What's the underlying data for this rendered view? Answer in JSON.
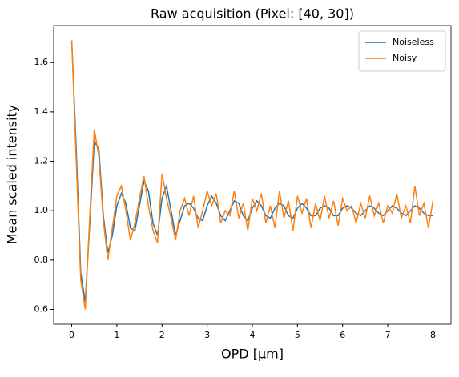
{
  "chart_data": {
    "type": "line",
    "title": "Raw acquisition (Pixel: [40, 30])",
    "xlabel": "OPD [µm]",
    "ylabel": "Mean scaled intensity",
    "x": [
      0,
      0.1,
      0.2,
      0.3,
      0.4,
      0.5,
      0.6,
      0.7,
      0.8,
      0.9,
      1.0,
      1.1,
      1.2,
      1.3,
      1.4,
      1.5,
      1.6,
      1.7,
      1.8,
      1.9,
      2.0,
      2.1,
      2.2,
      2.3,
      2.4,
      2.5,
      2.6,
      2.7,
      2.8,
      2.9,
      3.0,
      3.1,
      3.2,
      3.3,
      3.4,
      3.5,
      3.6,
      3.7,
      3.8,
      3.9,
      4.0,
      4.1,
      4.2,
      4.3,
      4.4,
      4.5,
      4.6,
      4.7,
      4.8,
      4.9,
      5.0,
      5.1,
      5.2,
      5.3,
      5.4,
      5.5,
      5.6,
      5.7,
      5.8,
      5.9,
      6.0,
      6.1,
      6.2,
      6.3,
      6.4,
      6.5,
      6.6,
      6.7,
      6.8,
      6.9,
      7.0,
      7.1,
      7.2,
      7.3,
      7.4,
      7.5,
      7.6,
      7.7,
      7.8,
      7.9,
      8.0
    ],
    "series": [
      {
        "name": "Noiseless",
        "color": "#1f77b4",
        "values": [
          1.69,
          1.25,
          0.75,
          0.63,
          0.95,
          1.28,
          1.25,
          0.98,
          0.83,
          0.9,
          1.02,
          1.07,
          1.03,
          0.93,
          0.92,
          1.02,
          1.12,
          1.08,
          0.95,
          0.9,
          1.05,
          1.1,
          1.0,
          0.9,
          0.96,
          1.02,
          1.03,
          1.01,
          0.97,
          0.96,
          1.02,
          1.06,
          1.03,
          0.98,
          0.96,
          1.0,
          1.04,
          1.03,
          0.98,
          0.96,
          1.01,
          1.04,
          1.02,
          0.98,
          0.97,
          1.01,
          1.03,
          1.02,
          0.98,
          0.97,
          1.01,
          1.03,
          1.01,
          0.98,
          0.98,
          1.01,
          1.02,
          1.01,
          0.98,
          0.98,
          1.01,
          1.02,
          1.01,
          0.99,
          0.98,
          1.0,
          1.02,
          1.01,
          0.99,
          0.98,
          1.0,
          1.02,
          1.01,
          0.99,
          0.98,
          1.0,
          1.02,
          1.01,
          0.99,
          0.98,
          0.98
        ]
      },
      {
        "name": "Noisy",
        "color": "#ff7f0e",
        "values": [
          1.69,
          1.2,
          0.72,
          0.6,
          0.98,
          1.33,
          1.22,
          0.96,
          0.8,
          0.93,
          1.06,
          1.1,
          1.0,
          0.88,
          0.95,
          1.05,
          1.14,
          1.02,
          0.92,
          0.87,
          1.15,
          1.05,
          0.97,
          0.88,
          1.0,
          1.05,
          0.98,
          1.06,
          0.93,
          1.0,
          1.08,
          1.02,
          1.07,
          0.95,
          1.0,
          0.98,
          1.08,
          0.97,
          1.03,
          0.92,
          1.05,
          1.0,
          1.07,
          0.95,
          1.02,
          0.93,
          1.08,
          0.97,
          1.04,
          0.92,
          1.06,
          0.99,
          1.05,
          0.93,
          1.03,
          0.96,
          1.06,
          0.97,
          1.04,
          0.94,
          1.05,
          1.0,
          1.02,
          0.95,
          1.03,
          0.97,
          1.06,
          0.98,
          1.03,
          0.95,
          1.02,
          0.99,
          1.07,
          0.97,
          1.02,
          0.95,
          1.1,
          0.98,
          1.03,
          0.93,
          1.04
        ]
      }
    ],
    "xlim": [
      -0.4,
      8.4
    ],
    "xticks": [
      0,
      1,
      2,
      3,
      4,
      5,
      6,
      7,
      8
    ],
    "ylim": [
      0.54,
      1.75
    ],
    "yticks": [
      0.6,
      0.8,
      {
        "value": 1,
        "label": "1.0"
      },
      1.2,
      1.4,
      1.6
    ],
    "grid": false,
    "legend": "upper right"
  }
}
